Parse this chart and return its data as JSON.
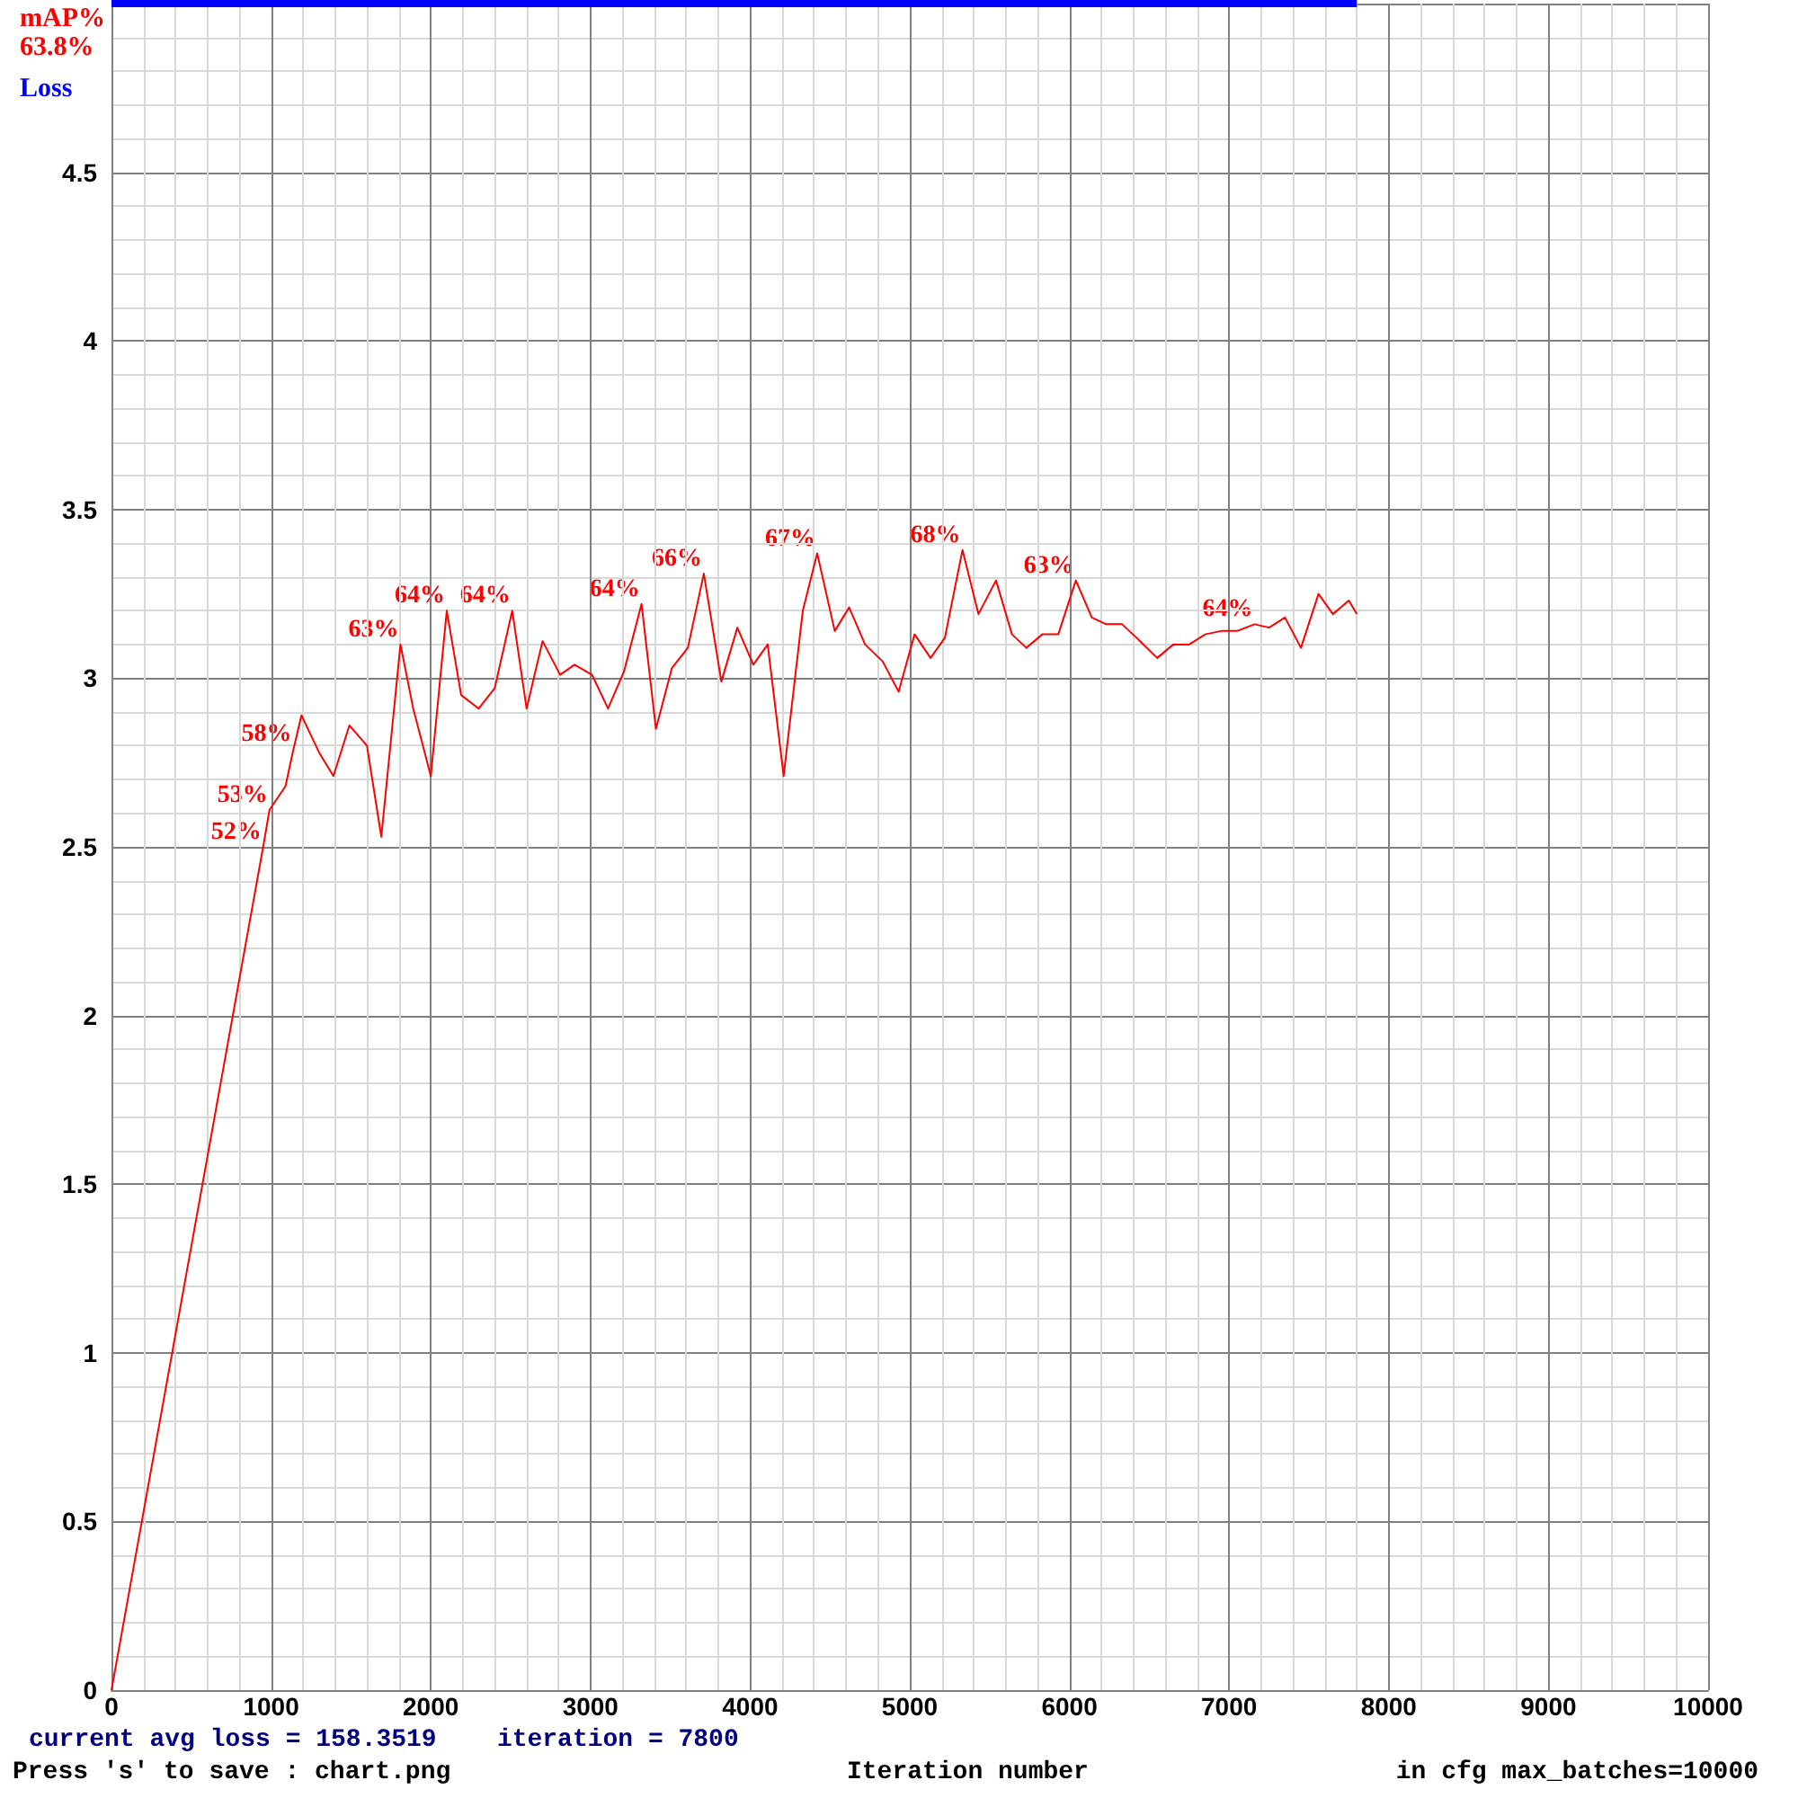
{
  "chart_data": {
    "type": "line",
    "xlabel": "Iteration number",
    "xlim": [
      0,
      10000
    ],
    "xticks": [
      0,
      1000,
      2000,
      3000,
      4000,
      5000,
      6000,
      7000,
      8000,
      9000,
      10000
    ],
    "ylim": [
      0,
      5
    ],
    "yticks": [
      0,
      0.5,
      1.0,
      1.5,
      2.0,
      2.5,
      3.0,
      3.5,
      4.0,
      4.5,
      {
        "value": 5,
        "label": null
      }
    ],
    "grid": true,
    "marker": "none",
    "line_style": "solid",
    "series": [
      {
        "name": "mAP%",
        "color": "#ff0000",
        "x": [
          0,
          950,
          990,
          1090,
          1140,
          1190,
          1300,
          1390,
          1490,
          1600,
          1690,
          1810,
          1890,
          2000,
          2100,
          2190,
          2300,
          2400,
          2510,
          2600,
          2700,
          2810,
          2900,
          3010,
          3110,
          3210,
          3320,
          3410,
          3510,
          3610,
          3710,
          3820,
          3920,
          4020,
          4110,
          4210,
          4330,
          4420,
          4530,
          4620,
          4720,
          4830,
          4930,
          5030,
          5130,
          5220,
          5330,
          5430,
          5540,
          5640,
          5730,
          5830,
          5930,
          6040,
          6140,
          6230,
          6330,
          6420,
          6550,
          6650,
          6750,
          6850,
          6950,
          7050,
          7160,
          7250,
          7350,
          7450,
          7560,
          7650,
          7750,
          7800
        ],
        "values": [
          0,
          2.5,
          2.61,
          2.68,
          2.79,
          2.89,
          2.78,
          2.71,
          2.86,
          2.8,
          2.53,
          3.1,
          2.91,
          2.71,
          3.2,
          2.95,
          2.91,
          2.97,
          3.2,
          2.91,
          3.11,
          3.01,
          3.04,
          3.01,
          2.91,
          3.02,
          3.22,
          2.85,
          3.03,
          3.09,
          3.31,
          2.99,
          3.15,
          3.04,
          3.1,
          2.71,
          3.2,
          3.37,
          3.14,
          3.21,
          3.1,
          3.05,
          2.96,
          3.13,
          3.06,
          3.12,
          3.38,
          3.19,
          3.29,
          3.13,
          3.09,
          3.13,
          3.13,
          3.29,
          3.18,
          3.16,
          3.16,
          3.12,
          3.06,
          3.1,
          3.1,
          3.13,
          3.14,
          3.14,
          3.16,
          3.15,
          3.18,
          3.09,
          3.25,
          3.19,
          3.23,
          3.19
        ]
      },
      {
        "name": "Loss",
        "color": "#0000ff",
        "x": [
          0,
          7800
        ],
        "values": [
          5,
          5
        ]
      }
    ],
    "annotations": [
      "63.8%",
      "current avg loss = 158.3519    iteration = 7800",
      "Press 's' to save : chart.png",
      "in cfg max_batches=10000",
      {
        "text": "52%",
        "x": 950,
        "y": 2.5
      },
      {
        "text": "53%",
        "x": 990,
        "y": 2.61
      },
      {
        "text": "58%",
        "x": 1140,
        "y": 2.79
      },
      {
        "text": "63%",
        "x": 1810,
        "y": 3.1
      },
      {
        "text": "64%",
        "x": 2100,
        "y": 3.2
      },
      {
        "text": "64%",
        "x": 2510,
        "y": 3.2
      },
      {
        "text": "64%",
        "x": 3320,
        "y": 3.22
      },
      {
        "text": "66%",
        "x": 3710,
        "y": 3.31
      },
      {
        "text": "67%",
        "x": 4420,
        "y": 3.37
      },
      {
        "text": "68%",
        "x": 5330,
        "y": 3.38
      },
      {
        "text": "63%",
        "x": 6040,
        "y": 3.29
      },
      {
        "text": "64%",
        "x": 7160,
        "y": 3.16
      }
    ]
  }
}
